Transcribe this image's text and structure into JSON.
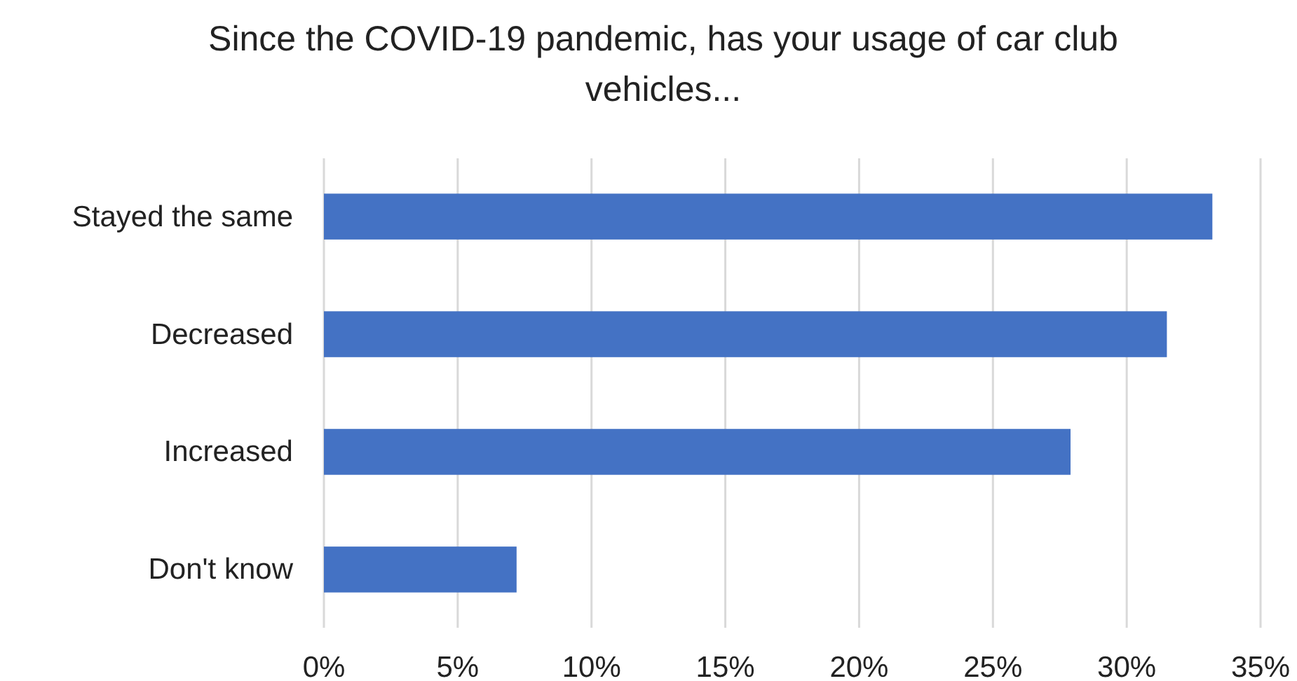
{
  "chart_data": {
    "type": "bar",
    "orientation": "horizontal",
    "title": "Since the COVID-19 pandemic, has your usage of car club vehicles...",
    "categories": [
      "Stayed the same",
      "Decreased",
      "Increased",
      "Don't know"
    ],
    "values": [
      33.2,
      31.5,
      27.9,
      7.2
    ],
    "color": "#4472c4",
    "xlim": [
      0,
      35
    ],
    "xticks": [
      {
        "value": 0,
        "label": "0%"
      },
      {
        "value": 5,
        "label": "5%"
      },
      {
        "value": 10,
        "label": "10%"
      },
      {
        "value": 15,
        "label": "15%"
      },
      {
        "value": 20,
        "label": "20%"
      },
      {
        "value": 25,
        "label": "25%"
      },
      {
        "value": 30,
        "label": "30%"
      },
      {
        "value": 35,
        "label": "35%"
      }
    ],
    "grid": "x"
  }
}
